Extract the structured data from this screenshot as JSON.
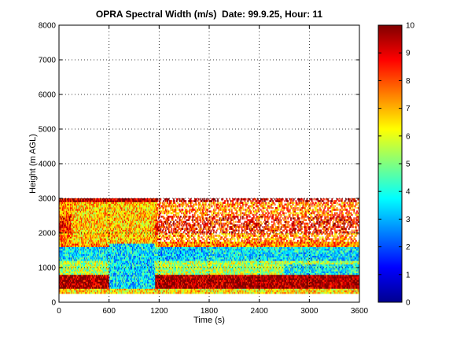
{
  "chart_data": {
    "type": "heatmap",
    "title": "OPRA Spectral Width (m/s)  Date: 99.9.25, Hour: 11",
    "xlabel": "Time (s)",
    "ylabel": "Height (m AGL)",
    "xlim": [
      0,
      3600
    ],
    "ylim": [
      0,
      8000
    ],
    "xticks": [
      0,
      600,
      1200,
      1800,
      2400,
      3000,
      3600
    ],
    "yticks": [
      0,
      1000,
      2000,
      3000,
      4000,
      5000,
      6000,
      7000,
      8000
    ],
    "grid": true,
    "colormap": "jet",
    "colorbar": {
      "range": [
        0,
        10
      ],
      "ticks": [
        0,
        1,
        2,
        3,
        4,
        5,
        6,
        7,
        8,
        9,
        10
      ]
    },
    "height_bands": [
      {
        "height_m": [
          2900,
          3000
        ],
        "value": 9.5
      },
      {
        "height_m": [
          2500,
          2900
        ],
        "value": 7.5
      },
      {
        "height_m": [
          2000,
          2500
        ],
        "value": 8.5
      },
      {
        "height_m": [
          1600,
          2000
        ],
        "value": 7.5
      },
      {
        "height_m": [
          1200,
          1600
        ],
        "value": 3.6
      },
      {
        "height_m": [
          800,
          1200
        ],
        "value": 5.5
      },
      {
        "height_m": [
          400,
          800
        ],
        "value": 9.6
      },
      {
        "height_m": [
          250,
          400
        ],
        "value": 6.5
      }
    ],
    "regions": [
      {
        "time_s": [
          600,
          1150
        ],
        "height_m": [
          400,
          1700
        ],
        "value": 3.5
      },
      {
        "time_s": [
          150,
          1150
        ],
        "height_m": [
          1700,
          2900
        ],
        "value": 6.8
      },
      {
        "time_s": [
          1200,
          1750
        ],
        "height_m": [
          1200,
          1600
        ],
        "value": 3.2
      },
      {
        "time_s": [
          1200,
          3600
        ],
        "height_m": [
          400,
          800
        ],
        "value": 9.7
      },
      {
        "time_s": [
          2700,
          3600
        ],
        "height_m": [
          800,
          1100
        ],
        "value": 3.8
      }
    ]
  }
}
